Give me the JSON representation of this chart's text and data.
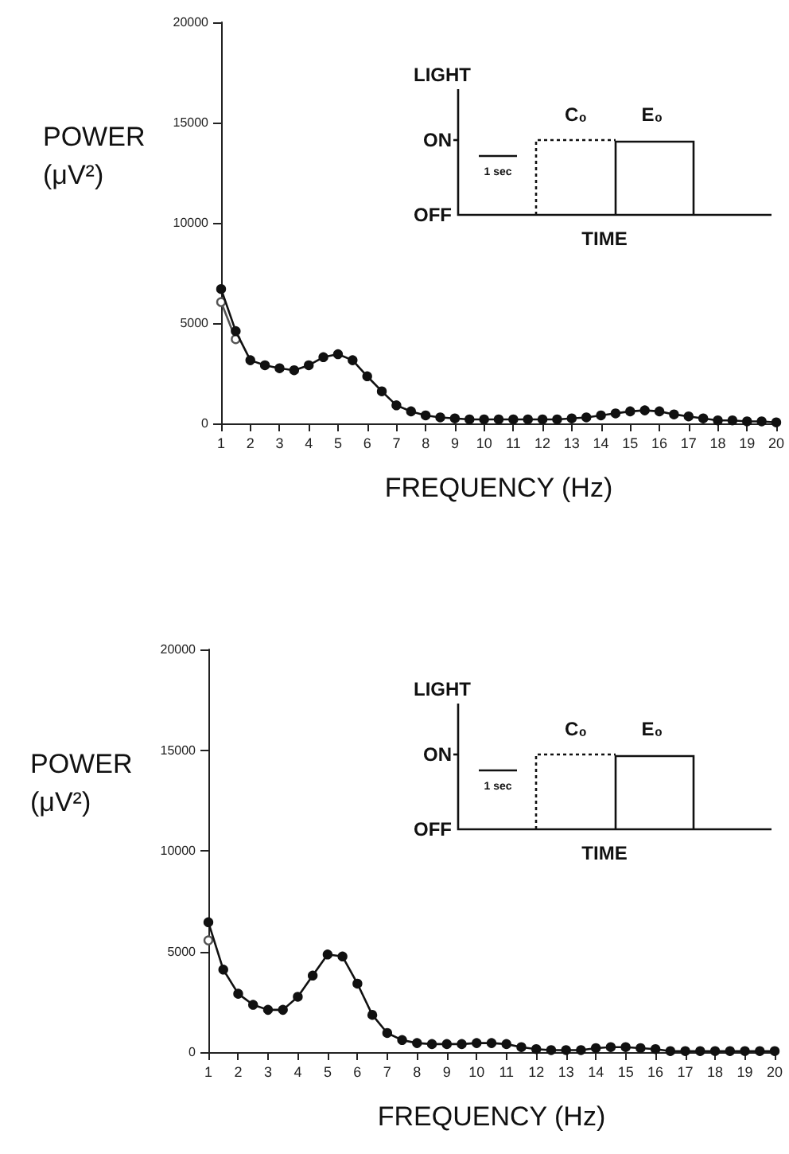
{
  "chart_data": [
    {
      "type": "line",
      "xlabel": "FREQUENCY (Hz)",
      "ylabel": "POWER (μV²)",
      "annotations": [
        "LIGHT",
        "ON",
        "OFF",
        "TIME",
        "1 sec",
        "C₀",
        "E₀"
      ],
      "xlim": [
        1,
        20
      ],
      "xticks": [
        1,
        2,
        3,
        4,
        5,
        6,
        7,
        8,
        9,
        10,
        11,
        12,
        13,
        14,
        15,
        16,
        17,
        18,
        19,
        20
      ],
      "ylim": [
        0,
        20000
      ],
      "yticks": [
        0,
        5000,
        10000,
        15000,
        20000
      ],
      "grid": false,
      "marker": "circle",
      "line_style": "solid",
      "series": [
        {
          "color": "#111111",
          "x": [
            1,
            1.5,
            2,
            2.5,
            3,
            3.5,
            4,
            4.5,
            5,
            5.5,
            6,
            6.5,
            7,
            7.5,
            8,
            8.5,
            9,
            9.5,
            10,
            10.5,
            11,
            11.5,
            12,
            12.5,
            13,
            13.5,
            14,
            14.5,
            15,
            15.5,
            16,
            16.5,
            17,
            17.5,
            18,
            18.5,
            19,
            19.5,
            20
          ],
          "values": [
            6700,
            4600,
            3150,
            2900,
            2750,
            2650,
            2900,
            3300,
            3450,
            3150,
            2350,
            1600,
            900,
            600,
            400,
            300,
            250,
            200,
            200,
            200,
            200,
            200,
            200,
            200,
            250,
            300,
            400,
            500,
            600,
            650,
            600,
            450,
            350,
            250,
            150,
            150,
            100,
            100,
            50
          ]
        },
        {
          "color": "#555555",
          "x": [
            1,
            1.5
          ],
          "values": [
            6050,
            4200
          ]
        }
      ]
    },
    {
      "type": "line",
      "xlabel": "FREQUENCY (Hz)",
      "ylabel": "POWER (μV²)",
      "annotations": [
        "LIGHT",
        "ON",
        "OFF",
        "TIME",
        "1 sec",
        "C₀",
        "E₀"
      ],
      "xlim": [
        1,
        20
      ],
      "xticks": [
        1,
        2,
        3,
        4,
        5,
        6,
        7,
        8,
        9,
        10,
        11,
        12,
        13,
        14,
        15,
        16,
        17,
        18,
        19,
        20
      ],
      "ylim": [
        0,
        20000
      ],
      "yticks": [
        0,
        5000,
        10000,
        15000,
        20000
      ],
      "grid": false,
      "marker": "circle",
      "line_style": "solid",
      "series": [
        {
          "color": "#111111",
          "x": [
            1,
            1.5,
            2,
            2.5,
            3,
            3.5,
            4,
            4.5,
            5,
            5.5,
            6,
            6.5,
            7,
            7.5,
            8,
            8.5,
            9,
            9.5,
            10,
            10.5,
            11,
            11.5,
            12,
            12.5,
            13,
            13.5,
            14,
            14.5,
            15,
            15.5,
            16,
            16.5,
            17,
            17.5,
            18,
            18.5,
            19,
            19.5,
            20
          ],
          "values": [
            6450,
            4100,
            2900,
            2350,
            2100,
            2100,
            2750,
            3800,
            4850,
            4750,
            3400,
            1850,
            950,
            600,
            450,
            400,
            400,
            400,
            450,
            450,
            400,
            250,
            150,
            100,
            100,
            100,
            200,
            250,
            250,
            200,
            150,
            50,
            50,
            50,
            50,
            50,
            50,
            50,
            50
          ]
        },
        {
          "color": "#555555",
          "x": [
            1
          ],
          "values": [
            5550
          ]
        }
      ]
    }
  ]
}
